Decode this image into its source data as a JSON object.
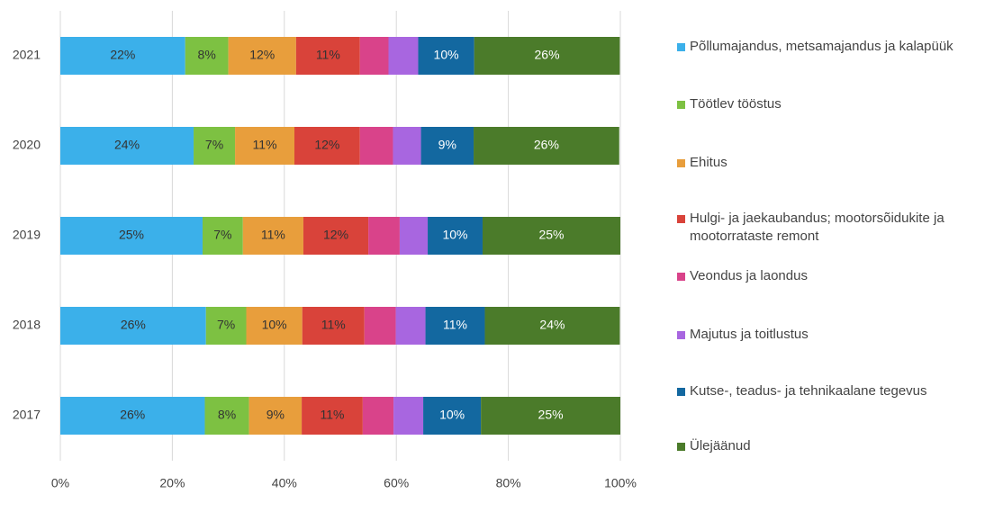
{
  "chart_data": {
    "type": "stacked-barh",
    "categories": [
      "2021",
      "2020",
      "2019",
      "2018",
      "2017"
    ],
    "xlim": [
      0,
      100
    ],
    "xticks": [
      {
        "value": 0,
        "label": "0%"
      },
      {
        "value": 20,
        "label": "20%"
      },
      {
        "value": 40,
        "label": "40%"
      },
      {
        "value": 60,
        "label": "60%"
      },
      {
        "value": 80,
        "label": "80%"
      },
      {
        "value": 100,
        "label": "100%"
      }
    ],
    "grid": true,
    "legend": "right",
    "series": [
      {
        "name": "Põllumajandus, metsamajandus ja kalapüük",
        "color": "#3bb0ea",
        "values": [
          22.3,
          23.8,
          25.4,
          26.0,
          25.8
        ],
        "value_labels": [
          "22%",
          "24%",
          "25%",
          "26%",
          "26%"
        ]
      },
      {
        "name": "Töötlev tööstus",
        "color": "#7dc142",
        "values": [
          7.7,
          7.4,
          7.2,
          7.2,
          7.9
        ],
        "value_labels": [
          "8%",
          "7%",
          "7%",
          "7%",
          "8%"
        ]
      },
      {
        "name": "Ehitus",
        "color": "#e89e3c",
        "values": [
          12.1,
          10.6,
          10.8,
          10.0,
          9.4
        ],
        "value_labels": [
          "12%",
          "11%",
          "11%",
          "10%",
          "9%"
        ]
      },
      {
        "name": "Hulgi- ja jaekaubandus; mootorsõidukite ja mootorrataste remont",
        "color": "#d9433a",
        "values": [
          11.4,
          11.7,
          11.6,
          11.1,
          10.9
        ],
        "value_labels": [
          "11%",
          "12%",
          "12%",
          "11%",
          "11%"
        ]
      },
      {
        "name": "Veondus ja laondus",
        "color": "#d9438a",
        "values": [
          5.1,
          5.9,
          5.6,
          5.6,
          5.5
        ]
      },
      {
        "name": "Majutus ja toitlustus",
        "color": "#a866e0",
        "values": [
          5.3,
          5.0,
          5.0,
          5.3,
          5.3
        ]
      },
      {
        "name": "Kutse-, teadus- ja tehnikaalane tegevus",
        "color": "#1368a0",
        "values": [
          10.0,
          9.4,
          9.8,
          10.6,
          10.3
        ],
        "value_labels": [
          "10%",
          "9%",
          "10%",
          "11%",
          "10%"
        ]
      },
      {
        "name": "Ülejäänud",
        "color": "#4b7b2a",
        "values": [
          26.0,
          26.0,
          24.6,
          24.1,
          24.9
        ],
        "value_labels": [
          "26%",
          "26%",
          "25%",
          "24%",
          "25%"
        ]
      }
    ]
  }
}
